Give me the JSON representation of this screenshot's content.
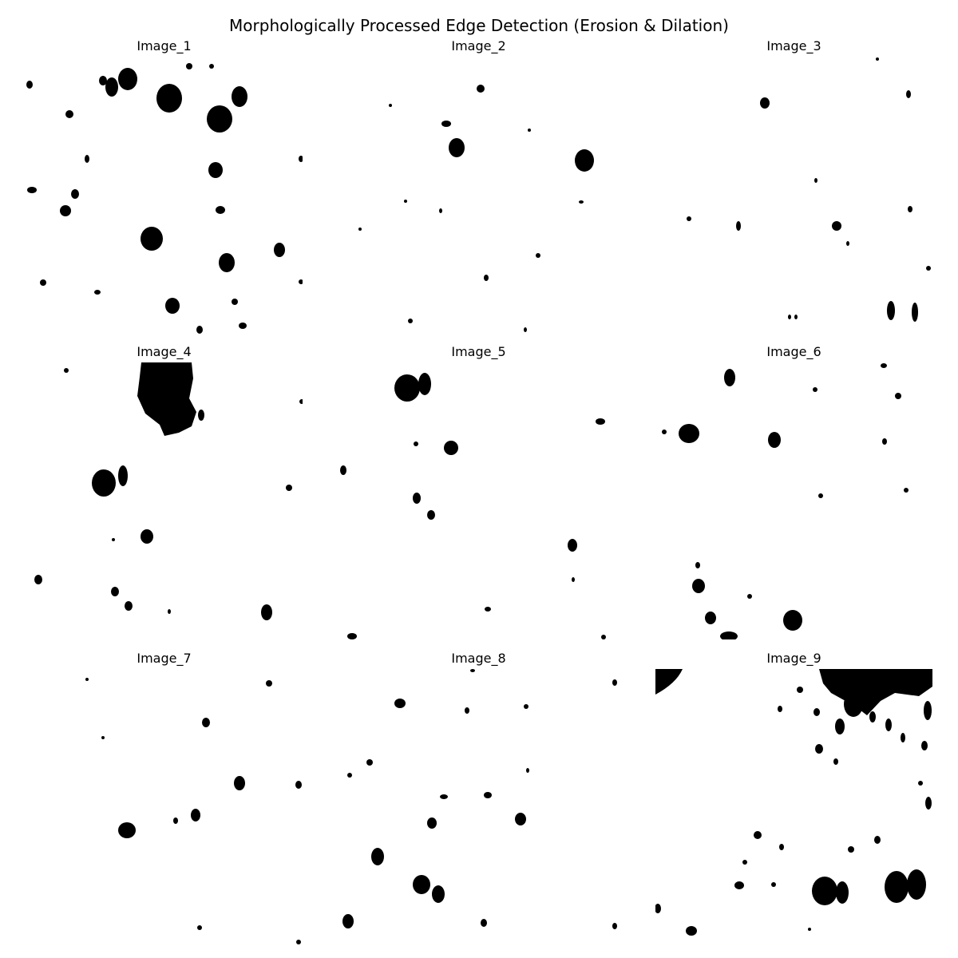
{
  "figure": {
    "title": "Morphologically Processed Edge Detection (Erosion & Dilation)"
  },
  "panels": [
    {
      "title": "Image_1"
    },
    {
      "title": "Image_2"
    },
    {
      "title": "Image_3"
    },
    {
      "title": "Image_4"
    },
    {
      "title": "Image_5"
    },
    {
      "title": "Image_6"
    },
    {
      "title": "Image_7"
    },
    {
      "title": "Image_8"
    },
    {
      "title": "Image_9"
    }
  ],
  "colors": {
    "foreground": "#000000",
    "background": "#ffffff"
  }
}
